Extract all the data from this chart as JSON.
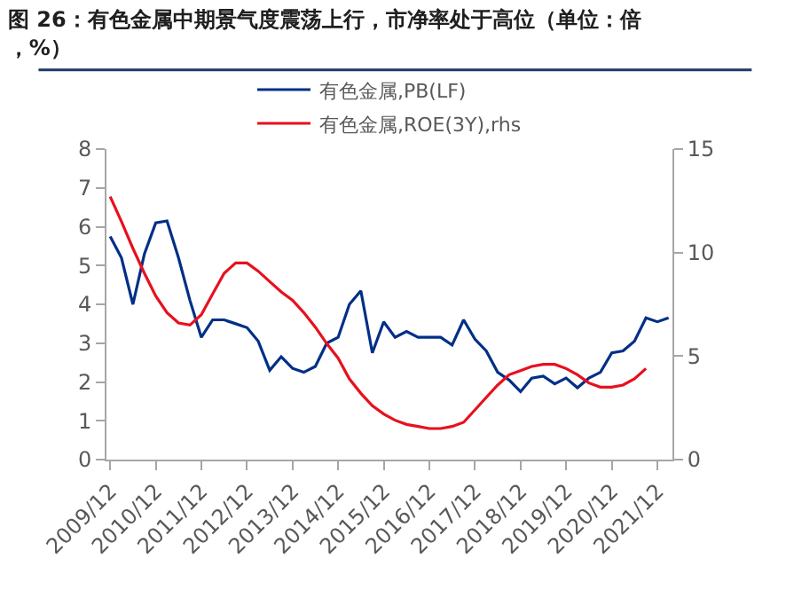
{
  "chart_data": {
    "type": "line",
    "title": "图 26：有色金属中期景气度震荡上行，市净率处于高位（单位：倍，%）",
    "x": [
      "2009-12",
      "2010-03",
      "2010-06",
      "2010-09",
      "2010-12",
      "2011-03",
      "2011-06",
      "2011-09",
      "2011-12",
      "2012-03",
      "2012-06",
      "2012-09",
      "2012-12",
      "2013-03",
      "2013-06",
      "2013-09",
      "2013-12",
      "2014-03",
      "2014-06",
      "2014-09",
      "2014-12",
      "2015-03",
      "2015-06",
      "2015-09",
      "2015-12",
      "2016-03",
      "2016-06",
      "2016-09",
      "2016-12",
      "2017-03",
      "2017-06",
      "2017-09",
      "2017-12",
      "2018-03",
      "2018-06",
      "2018-09",
      "2018-12",
      "2019-03",
      "2019-06",
      "2019-09",
      "2019-12",
      "2020-03",
      "2020-06",
      "2020-09",
      "2020-12",
      "2021-03",
      "2021-06",
      "2021-09",
      "2021-12",
      "2022-03"
    ],
    "series": [
      {
        "name": "有色金属,PB(LF)",
        "color": "#002f87",
        "values": [
          5.75,
          5.2,
          4.0,
          5.3,
          6.1,
          6.15,
          5.2,
          4.1,
          3.15,
          3.6,
          3.6,
          3.5,
          3.4,
          3.05,
          2.3,
          2.65,
          2.35,
          2.25,
          2.4,
          3.0,
          3.15,
          4.0,
          4.35,
          2.75,
          3.55,
          3.15,
          3.3,
          3.15,
          3.15,
          3.15,
          2.95,
          3.6,
          3.1,
          2.8,
          2.25,
          2.05,
          1.75,
          2.1,
          2.15,
          1.95,
          2.1,
          1.85,
          2.1,
          2.25,
          2.75,
          2.8,
          3.05,
          3.65,
          3.55,
          3.65
        ]
      },
      {
        "name": "有色金属,ROE(3Y),rhs",
        "color": "#e8101e",
        "axis": "y2",
        "values": [
          12.7,
          11.5,
          10.2,
          9.0,
          7.9,
          7.1,
          6.6,
          6.5,
          7.0,
          8.0,
          9.0,
          9.5,
          9.5,
          9.1,
          8.6,
          8.1,
          7.7,
          7.1,
          6.4,
          5.6,
          4.9,
          3.9,
          3.2,
          2.6,
          2.2,
          1.9,
          1.7,
          1.6,
          1.5,
          1.5,
          1.6,
          1.8,
          2.4,
          3.0,
          3.6,
          4.1,
          4.3,
          4.5,
          4.6,
          4.6,
          4.4,
          4.1,
          3.7,
          3.5,
          3.5,
          3.6,
          3.9,
          4.4,
          null,
          null
        ]
      }
    ],
    "xlim": [
      "2009-11",
      "2022-04"
    ],
    "xticks": [
      {
        "value": "2009-12",
        "label": "2009/12"
      },
      {
        "value": "2010-12",
        "label": "2010/12"
      },
      {
        "value": "2011-12",
        "label": "2011/12"
      },
      {
        "value": "2012-12",
        "label": "2012/12"
      },
      {
        "value": "2013-12",
        "label": "2013/12"
      },
      {
        "value": "2014-12",
        "label": "2014/12"
      },
      {
        "value": "2015-12",
        "label": "2015/12"
      },
      {
        "value": "2016-12",
        "label": "2016/12"
      },
      {
        "value": "2017-12",
        "label": "2017/12"
      },
      {
        "value": "2018-12",
        "label": "2018/12"
      },
      {
        "value": "2019-12",
        "label": "2019/12"
      },
      {
        "value": "2020-12",
        "label": "2020/12"
      },
      {
        "value": "2021-12",
        "label": "2021/12"
      }
    ],
    "ylim": [
      0,
      8
    ],
    "yticks": [
      0,
      1,
      2,
      3,
      4,
      5,
      6,
      7,
      8
    ],
    "y2lim": [
      0,
      15
    ],
    "y2ticks": [
      0,
      5,
      10,
      15
    ],
    "legend": "top",
    "marker": "none",
    "line_style": "solid"
  }
}
